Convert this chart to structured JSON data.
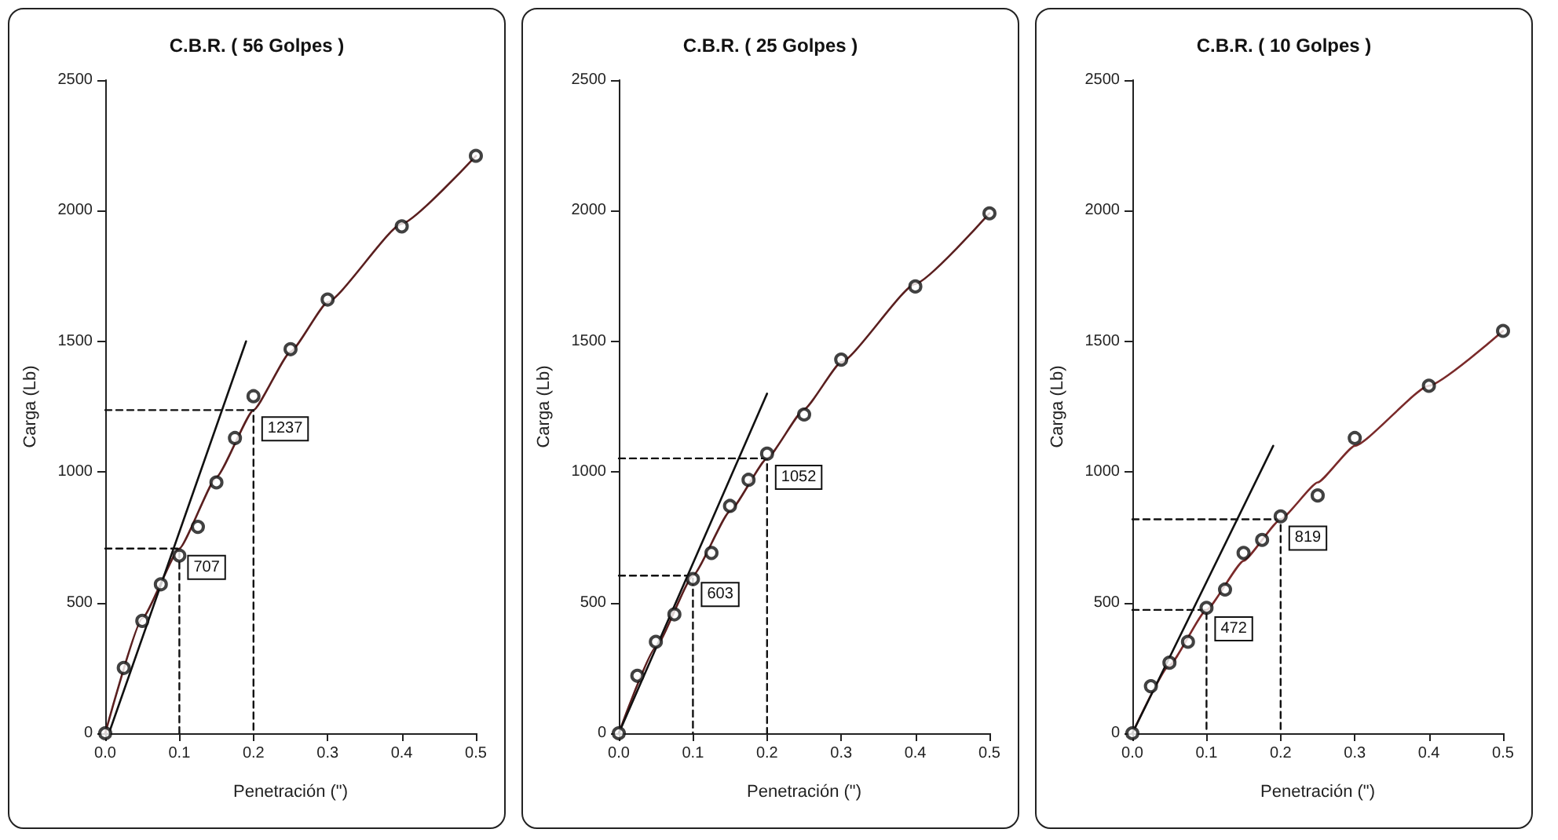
{
  "chart_data": [
    {
      "type": "scatter",
      "title": "C.B.R. ( 56 Golpes )",
      "xlabel": "Penetración (\")",
      "ylabel": "Carga (Lb)",
      "xlim": [
        0,
        0.5
      ],
      "ylim": [
        0,
        2500
      ],
      "xticks": [
        {
          "value": 0,
          "label": "0.0"
        },
        {
          "value": 0.1,
          "label": "0.1"
        },
        {
          "value": 0.2,
          "label": "0.2"
        },
        {
          "value": 0.3,
          "label": "0.3"
        },
        {
          "value": 0.4,
          "label": "0.4"
        },
        {
          "value": 0.5,
          "label": "0.5"
        }
      ],
      "yticks": [
        0,
        500,
        1000,
        1500,
        2000,
        2500
      ],
      "grid": false,
      "series": [
        {
          "type": "scatter",
          "color": "#111111",
          "marker": "circle",
          "x": [
            0,
            0.025,
            0.05,
            0.075,
            0.1,
            0.125,
            0.15,
            0.175,
            0.2,
            0.25,
            0.3,
            0.4,
            0.5
          ],
          "values": [
            0,
            250,
            430,
            570,
            680,
            790,
            960,
            1130,
            1290,
            1470,
            1660,
            1940,
            2210
          ]
        },
        {
          "type": "line",
          "color": "#5a1f1f",
          "marker": "none",
          "line_style": "solid",
          "x": [
            0,
            0.05,
            0.1,
            0.15,
            0.2,
            0.25,
            0.3,
            0.4,
            0.5
          ],
          "values": [
            0,
            440,
            707,
            980,
            1237,
            1460,
            1650,
            1950,
            2210
          ]
        },
        {
          "type": "line",
          "color": "#111111",
          "marker": "none",
          "line_style": "solid",
          "x": [
            0.005,
            0.19
          ],
          "values": [
            0,
            1500
          ]
        },
        {
          "type": "line",
          "color": "#111111",
          "marker": "none",
          "line_style": "dashed",
          "x": [
            0,
            0.1,
            0.1
          ],
          "values": [
            707,
            707,
            0
          ],
          "value_labels": [
            null,
            "707",
            null
          ]
        },
        {
          "type": "line",
          "color": "#111111",
          "marker": "none",
          "line_style": "dashed",
          "x": [
            0,
            0.2,
            0.2
          ],
          "values": [
            1237,
            1237,
            0
          ],
          "value_labels": [
            null,
            "1237",
            null
          ]
        }
      ]
    },
    {
      "type": "scatter",
      "title": "C.B.R. ( 25 Golpes )",
      "xlabel": "Penetración (\")",
      "ylabel": "Carga (Lb)",
      "xlim": [
        0,
        0.5
      ],
      "ylim": [
        0,
        2500
      ],
      "xticks": [
        {
          "value": 0,
          "label": "0.0"
        },
        {
          "value": 0.1,
          "label": "0.1"
        },
        {
          "value": 0.2,
          "label": "0.2"
        },
        {
          "value": 0.3,
          "label": "0.3"
        },
        {
          "value": 0.4,
          "label": "0.4"
        },
        {
          "value": 0.5,
          "label": "0.5"
        }
      ],
      "yticks": [
        0,
        500,
        1000,
        1500,
        2000,
        2500
      ],
      "grid": false,
      "series": [
        {
          "type": "scatter",
          "color": "#111111",
          "marker": "circle",
          "x": [
            0,
            0.025,
            0.05,
            0.075,
            0.1,
            0.125,
            0.15,
            0.175,
            0.2,
            0.25,
            0.3,
            0.4,
            0.5
          ],
          "values": [
            0,
            220,
            350,
            455,
            590,
            690,
            870,
            970,
            1070,
            1220,
            1430,
            1710,
            1990
          ]
        },
        {
          "type": "line",
          "color": "#5a1f1f",
          "marker": "none",
          "line_style": "solid",
          "x": [
            0,
            0.05,
            0.1,
            0.15,
            0.2,
            0.25,
            0.3,
            0.4,
            0.5
          ],
          "values": [
            0,
            330,
            603,
            850,
            1052,
            1240,
            1420,
            1720,
            1990
          ]
        },
        {
          "type": "line",
          "color": "#111111",
          "marker": "none",
          "line_style": "solid",
          "x": [
            0,
            0.2
          ],
          "values": [
            0,
            1300
          ]
        },
        {
          "type": "line",
          "color": "#111111",
          "marker": "none",
          "line_style": "dashed",
          "x": [
            0,
            0.1,
            0.1
          ],
          "values": [
            603,
            603,
            0
          ],
          "value_labels": [
            null,
            "603",
            null
          ]
        },
        {
          "type": "line",
          "color": "#111111",
          "marker": "none",
          "line_style": "dashed",
          "x": [
            0,
            0.2,
            0.2
          ],
          "values": [
            1052,
            1052,
            0
          ],
          "value_labels": [
            null,
            "1052",
            null
          ]
        }
      ]
    },
    {
      "type": "scatter",
      "title": "C.B.R. ( 10 Golpes )",
      "xlabel": "Penetración (\")",
      "ylabel": "Carga (Lb)",
      "xlim": [
        0,
        0.5
      ],
      "ylim": [
        0,
        2500
      ],
      "xticks": [
        {
          "value": 0,
          "label": "0.0"
        },
        {
          "value": 0.1,
          "label": "0.1"
        },
        {
          "value": 0.2,
          "label": "0.2"
        },
        {
          "value": 0.3,
          "label": "0.3"
        },
        {
          "value": 0.4,
          "label": "0.4"
        },
        {
          "value": 0.5,
          "label": "0.5"
        }
      ],
      "yticks": [
        0,
        500,
        1000,
        1500,
        2000,
        2500
      ],
      "grid": false,
      "series": [
        {
          "type": "scatter",
          "color": "#111111",
          "marker": "circle",
          "x": [
            0,
            0.025,
            0.05,
            0.075,
            0.1,
            0.125,
            0.15,
            0.175,
            0.2,
            0.25,
            0.3,
            0.4,
            0.5
          ],
          "values": [
            0,
            180,
            270,
            350,
            480,
            550,
            690,
            740,
            830,
            910,
            1130,
            1330,
            1540
          ]
        },
        {
          "type": "line",
          "color": "#7a2a2a",
          "marker": "none",
          "line_style": "solid",
          "x": [
            0,
            0.05,
            0.1,
            0.15,
            0.2,
            0.25,
            0.3,
            0.4,
            0.5
          ],
          "values": [
            0,
            260,
            472,
            660,
            819,
            960,
            1100,
            1330,
            1540
          ]
        },
        {
          "type": "line",
          "color": "#111111",
          "marker": "none",
          "line_style": "solid",
          "x": [
            0,
            0.19
          ],
          "values": [
            0,
            1100
          ]
        },
        {
          "type": "line",
          "color": "#111111",
          "marker": "none",
          "line_style": "dashed",
          "x": [
            0,
            0.1,
            0.1
          ],
          "values": [
            472,
            472,
            0
          ],
          "value_labels": [
            null,
            "472",
            null
          ]
        },
        {
          "type": "line",
          "color": "#111111",
          "marker": "none",
          "line_style": "dashed",
          "x": [
            0,
            0.2,
            0.2
          ],
          "values": [
            819,
            819,
            0
          ],
          "value_labels": [
            null,
            "819",
            null
          ]
        }
      ]
    }
  ]
}
